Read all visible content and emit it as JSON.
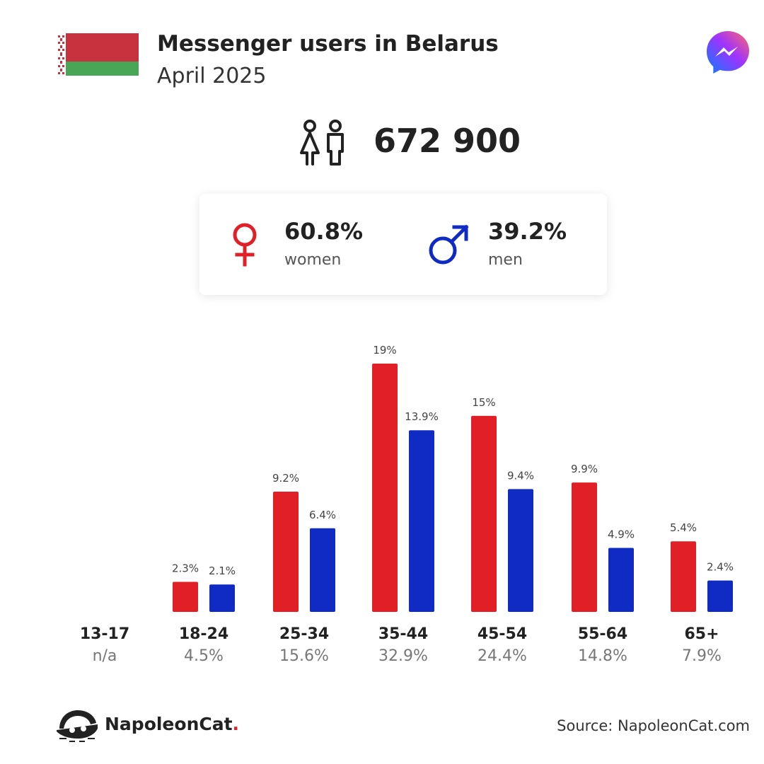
{
  "header": {
    "title": "Messenger users in Belarus",
    "subtitle": "April 2025"
  },
  "total": {
    "value": "672 900"
  },
  "gender": {
    "women_pct": "60.8%",
    "women_label": "women",
    "men_pct": "39.2%",
    "men_label": "men"
  },
  "age_groups": [
    {
      "name": "13-17",
      "total": "n/a"
    },
    {
      "name": "18-24",
      "total": "4.5%"
    },
    {
      "name": "25-34",
      "total": "15.6%"
    },
    {
      "name": "35-44",
      "total": "32.9%"
    },
    {
      "name": "45-54",
      "total": "24.4%"
    },
    {
      "name": "55-64",
      "total": "14.8%"
    },
    {
      "name": "65+",
      "total": "7.9%"
    }
  ],
  "chart_data": {
    "type": "bar",
    "categories": [
      "13-17",
      "18-24",
      "25-34",
      "35-44",
      "45-54",
      "55-64",
      "65+"
    ],
    "series": [
      {
        "name": "women",
        "color": "#e01f26",
        "values": [
          null,
          2.3,
          9.2,
          19,
          15,
          9.9,
          5.4
        ],
        "labels": [
          null,
          "2.3%",
          "9.2%",
          "19%",
          "15%",
          "9.9%",
          "5.4%"
        ]
      },
      {
        "name": "men",
        "color": "#0f2bc3",
        "values": [
          null,
          2.1,
          6.4,
          13.9,
          9.4,
          4.9,
          2.4
        ],
        "labels": [
          null,
          "2.1%",
          "6.4%",
          "13.9%",
          "9.4%",
          "4.9%",
          "2.4%"
        ]
      }
    ],
    "ylim": [
      0,
      19
    ]
  },
  "footer": {
    "brand": "NapoleonCat",
    "brand_dot": ".",
    "source": "Source: NapoleonCat.com"
  },
  "colors": {
    "women": "#e01f26",
    "men": "#0f2bc3",
    "flag_red": "#c8313e",
    "flag_green": "#4aa657"
  },
  "icons": [
    "belarus-flag",
    "messenger-logo",
    "people-icon",
    "female-icon",
    "male-icon",
    "napoleoncat-logo"
  ]
}
